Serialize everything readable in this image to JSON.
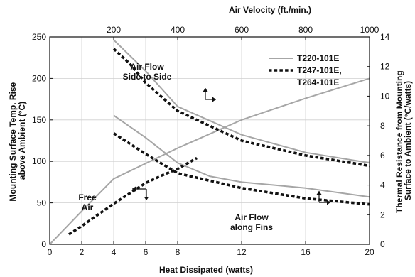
{
  "chart_data": {
    "type": "line",
    "x_bottom": {
      "label": "Heat Dissipated (watts)",
      "range": [
        0,
        20
      ],
      "ticks": [
        0,
        2,
        4,
        6,
        8,
        12,
        16,
        20
      ],
      "tick_labels": [
        "0",
        "2",
        "4",
        "6",
        "8",
        "12",
        "16",
        "20"
      ]
    },
    "x_top": {
      "label": "Air Velocity (ft./min.)",
      "range": [
        0,
        1000
      ],
      "ticks": [
        200,
        400,
        600,
        800,
        1000
      ],
      "tick_labels": [
        "200",
        "400",
        "600",
        "800",
        "1000"
      ]
    },
    "y_left": {
      "label": "Mounting Surface Temp. Rise above Ambient (°C)",
      "range": [
        0,
        250
      ],
      "ticks": [
        0,
        50,
        100,
        150,
        200,
        250
      ],
      "tick_labels": [
        "0",
        "50",
        "100",
        "150",
        "200",
        "250"
      ]
    },
    "y_right": {
      "label": "Thermal Resistance from Mounting Surface to Ambient (°C/watts)",
      "range": [
        0,
        14
      ],
      "ticks": [
        0,
        2,
        4,
        6,
        8,
        10,
        12,
        14
      ],
      "tick_labels": [
        "0",
        "2",
        "4",
        "6",
        "8",
        "10",
        "12",
        "14"
      ]
    },
    "grid": true,
    "legend": {
      "position": "top-right",
      "entries": [
        {
          "label": "T220-101E",
          "style": "solid",
          "color": "#a6a6a6"
        },
        {
          "label": "T247-101E,",
          "style": "dotted",
          "color": "#111111"
        },
        {
          "label": "T264-101E",
          "style": "none",
          "color": "#111111"
        }
      ]
    },
    "series": [
      {
        "name": "T220-101E",
        "condition": "Free Air",
        "axes": "bottom-left",
        "style": "solid",
        "color": "#a6a6a6",
        "points": [
          [
            0,
            0
          ],
          [
            2,
            40
          ],
          [
            4,
            79
          ],
          [
            8,
            116
          ],
          [
            12,
            150
          ],
          [
            16,
            176
          ],
          [
            20,
            200
          ]
        ]
      },
      {
        "name": "T247-101E, T264-101E",
        "condition": "Free Air",
        "axes": "bottom-left",
        "style": "dotted",
        "color": "#111111",
        "points": [
          [
            1.2,
            12
          ],
          [
            2,
            22
          ],
          [
            4,
            49
          ],
          [
            6,
            74
          ],
          [
            7,
            83
          ],
          [
            8,
            91
          ],
          [
            9.2,
            104
          ]
        ]
      },
      {
        "name": "T220-101E",
        "condition": "Air Flow Side to Side",
        "axes": "top-right",
        "style": "solid",
        "color": "#a6a6a6",
        "points": [
          [
            200,
            13.8
          ],
          [
            300,
            11.7
          ],
          [
            400,
            9.3
          ],
          [
            600,
            7.4
          ],
          [
            800,
            6.2
          ],
          [
            1000,
            5.5
          ]
        ]
      },
      {
        "name": "T247-101E, T264-101E",
        "condition": "Air Flow Side to Side",
        "axes": "top-right",
        "style": "dotted",
        "color": "#111111",
        "points": [
          [
            200,
            13.2
          ],
          [
            250,
            12.2
          ],
          [
            300,
            10.9
          ],
          [
            400,
            9.0
          ],
          [
            500,
            8.0
          ],
          [
            600,
            7.0
          ],
          [
            800,
            6.0
          ],
          [
            1000,
            5.3
          ]
        ]
      },
      {
        "name": "T220-101E",
        "condition": "Air Flow along Fins",
        "axes": "top-right",
        "style": "solid",
        "color": "#a6a6a6",
        "points": [
          [
            200,
            8.7
          ],
          [
            300,
            7.2
          ],
          [
            400,
            5.5
          ],
          [
            500,
            4.6
          ],
          [
            600,
            4.2
          ],
          [
            800,
            3.8
          ],
          [
            1000,
            3.2
          ]
        ]
      },
      {
        "name": "T247-101E, T264-101E",
        "condition": "Air Flow along Fins",
        "axes": "top-right",
        "style": "dotted",
        "color": "#111111",
        "points": [
          [
            200,
            7.5
          ],
          [
            300,
            6.1
          ],
          [
            400,
            4.8
          ],
          [
            500,
            4.3
          ],
          [
            600,
            3.8
          ],
          [
            800,
            3.1
          ],
          [
            1000,
            2.7
          ]
        ]
      }
    ],
    "annotations": [
      {
        "lines": [
          "Air Flow",
          "Side to Side"
        ]
      },
      {
        "lines": [
          "Free",
          "Air"
        ]
      },
      {
        "lines": [
          "Air Flow",
          "along Fins"
        ]
      }
    ]
  }
}
